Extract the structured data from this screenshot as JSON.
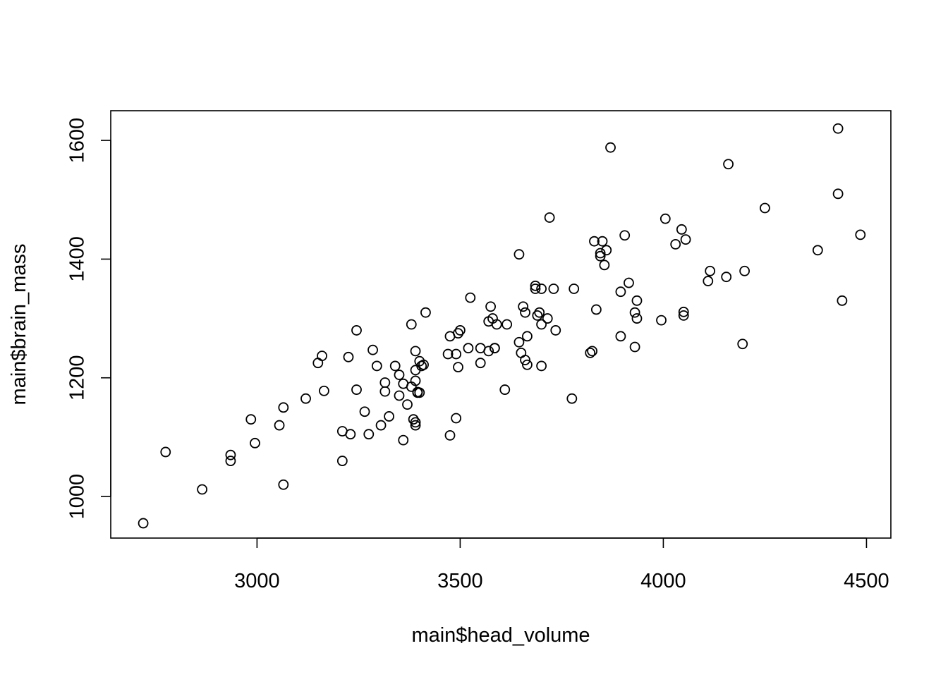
{
  "chart_data": {
    "type": "scatter",
    "title": "",
    "xlabel": "main$head_volume",
    "ylabel": "main$brain_mass",
    "xlim": [
      2640,
      4560
    ],
    "ylim": [
      930,
      1650
    ],
    "xticks": [
      3000,
      3500,
      4000,
      4500
    ],
    "yticks": [
      1000,
      1200,
      1400,
      1600
    ],
    "grid": false,
    "legend": "none",
    "marker": "open-circle",
    "points": [
      [
        2720,
        955
      ],
      [
        2775,
        1075
      ],
      [
        2865,
        1012
      ],
      [
        2935,
        1070
      ],
      [
        2935,
        1060
      ],
      [
        2985,
        1130
      ],
      [
        2995,
        1090
      ],
      [
        3055,
        1120
      ],
      [
        3065,
        1150
      ],
      [
        3065,
        1020
      ],
      [
        3120,
        1165
      ],
      [
        3150,
        1225
      ],
      [
        3160,
        1237
      ],
      [
        3165,
        1178
      ],
      [
        3210,
        1110
      ],
      [
        3210,
        1060
      ],
      [
        3225,
        1235
      ],
      [
        3230,
        1105
      ],
      [
        3245,
        1280
      ],
      [
        3245,
        1180
      ],
      [
        3265,
        1143
      ],
      [
        3275,
        1105
      ],
      [
        3285,
        1247
      ],
      [
        3295,
        1220
      ],
      [
        3305,
        1120
      ],
      [
        3315,
        1192
      ],
      [
        3315,
        1177
      ],
      [
        3325,
        1135
      ],
      [
        3340,
        1220
      ],
      [
        3350,
        1205
      ],
      [
        3350,
        1170
      ],
      [
        3360,
        1190
      ],
      [
        3360,
        1095
      ],
      [
        3370,
        1155
      ],
      [
        3380,
        1290
      ],
      [
        3380,
        1185
      ],
      [
        3385,
        1130
      ],
      [
        3390,
        1125
      ],
      [
        3390,
        1120
      ],
      [
        3390,
        1245
      ],
      [
        3390,
        1213
      ],
      [
        3390,
        1195
      ],
      [
        3395,
        1176
      ],
      [
        3395,
        1175
      ],
      [
        3400,
        1228
      ],
      [
        3400,
        1175
      ],
      [
        3405,
        1220
      ],
      [
        3410,
        1222
      ],
      [
        3415,
        1310
      ],
      [
        3470,
        1240
      ],
      [
        3475,
        1270
      ],
      [
        3475,
        1103
      ],
      [
        3490,
        1240
      ],
      [
        3490,
        1132
      ],
      [
        3495,
        1218
      ],
      [
        3495,
        1275
      ],
      [
        3500,
        1280
      ],
      [
        3520,
        1250
      ],
      [
        3525,
        1335
      ],
      [
        3550,
        1250
      ],
      [
        3550,
        1225
      ],
      [
        3570,
        1295
      ],
      [
        3570,
        1245
      ],
      [
        3575,
        1320
      ],
      [
        3580,
        1300
      ],
      [
        3585,
        1250
      ],
      [
        3585,
        1250
      ],
      [
        3590,
        1290
      ],
      [
        3610,
        1180
      ],
      [
        3615,
        1290
      ],
      [
        3645,
        1408
      ],
      [
        3645,
        1260
      ],
      [
        3650,
        1242
      ],
      [
        3655,
        1320
      ],
      [
        3660,
        1230
      ],
      [
        3660,
        1310
      ],
      [
        3665,
        1270
      ],
      [
        3665,
        1222
      ],
      [
        3685,
        1355
      ],
      [
        3685,
        1350
      ],
      [
        3690,
        1305
      ],
      [
        3695,
        1310
      ],
      [
        3700,
        1350
      ],
      [
        3700,
        1290
      ],
      [
        3700,
        1220
      ],
      [
        3715,
        1300
      ],
      [
        3720,
        1470
      ],
      [
        3730,
        1350
      ],
      [
        3735,
        1280
      ],
      [
        3775,
        1165
      ],
      [
        3780,
        1350
      ],
      [
        3820,
        1242
      ],
      [
        3825,
        1245
      ],
      [
        3830,
        1430
      ],
      [
        3835,
        1315
      ],
      [
        3845,
        1410
      ],
      [
        3845,
        1405
      ],
      [
        3850,
        1430
      ],
      [
        3855,
        1390
      ],
      [
        3860,
        1415
      ],
      [
        3870,
        1588
      ],
      [
        3895,
        1345
      ],
      [
        3895,
        1270
      ],
      [
        3905,
        1440
      ],
      [
        3915,
        1360
      ],
      [
        3930,
        1252
      ],
      [
        3930,
        1310
      ],
      [
        3935,
        1330
      ],
      [
        3935,
        1300
      ],
      [
        3995,
        1297
      ],
      [
        4005,
        1468
      ],
      [
        4030,
        1425
      ],
      [
        4045,
        1450
      ],
      [
        4050,
        1305
      ],
      [
        4050,
        1311
      ],
      [
        4055,
        1433
      ],
      [
        4110,
        1363
      ],
      [
        4115,
        1380
      ],
      [
        4155,
        1370
      ],
      [
        4160,
        1560
      ],
      [
        4195,
        1257
      ],
      [
        4200,
        1380
      ],
      [
        4250,
        1486
      ],
      [
        4380,
        1415
      ],
      [
        4430,
        1620
      ],
      [
        4430,
        1510
      ],
      [
        4440,
        1330
      ],
      [
        4485,
        1441
      ]
    ]
  }
}
